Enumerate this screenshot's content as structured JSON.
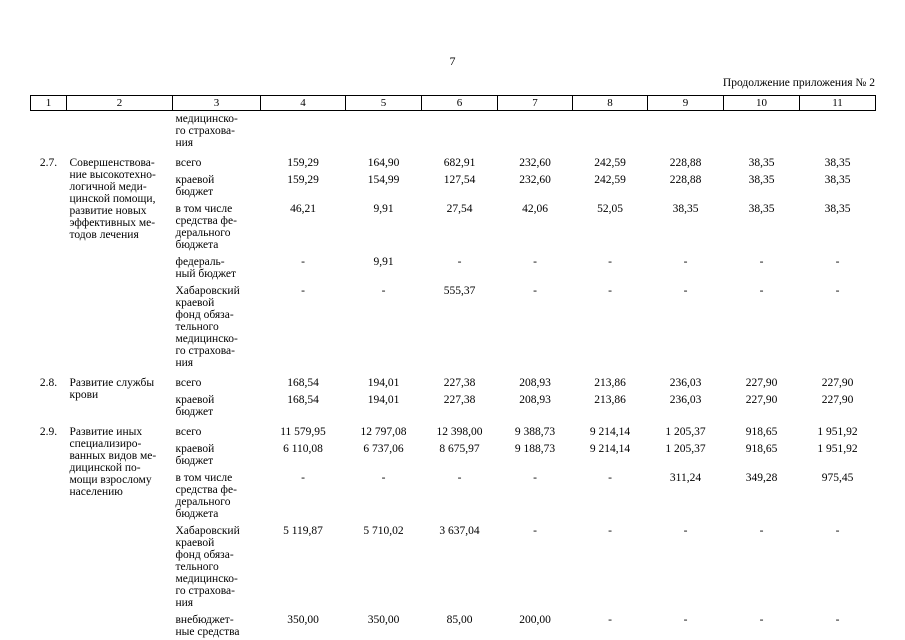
{
  "page": {
    "number": "7",
    "continuation_note": "Продолжение приложения № 2"
  },
  "table": {
    "column_numbers": [
      "1",
      "2",
      "3",
      "4",
      "5",
      "6",
      "7",
      "8",
      "9",
      "10",
      "11"
    ],
    "groups": [
      {
        "num": "",
        "name": "",
        "subrows": [
          {
            "label": "медицинско-\nго страхова-\nния",
            "values": [
              "",
              "",
              "",
              "",
              "",
              "",
              "",
              ""
            ]
          }
        ]
      },
      {
        "num": "2.7.",
        "name": "Совершенствова-\nние высокотехно-\nлогичной меди-\nцинской помощи,\nразвитие новых\nэффективных ме-\nтодов лечения",
        "subrows": [
          {
            "label": "всего",
            "values": [
              "159,29",
              "164,90",
              "682,91",
              "232,60",
              "242,59",
              "228,88",
              "38,35",
              "38,35"
            ]
          },
          {
            "label": "краевой\nбюджет",
            "values": [
              "159,29",
              "154,99",
              "127,54",
              "232,60",
              "242,59",
              "228,88",
              "38,35",
              "38,35"
            ]
          },
          {
            "label": "в том числе\nсредства фе-\nдерального\nбюджета",
            "values": [
              "46,21",
              "9,91",
              "27,54",
              "42,06",
              "52,05",
              "38,35",
              "38,35",
              "38,35"
            ]
          },
          {
            "label": "федераль-\nный бюджет",
            "values": [
              "-",
              "9,91",
              "-",
              "-",
              "-",
              "-",
              "-",
              "-"
            ]
          },
          {
            "label": "Хабаровский\nкраевой\nфонд обяза-\nтельного\nмедицинско-\nго страхова-\nния",
            "values": [
              "-",
              "-",
              "555,37",
              "-",
              "-",
              "-",
              "-",
              "-"
            ]
          }
        ]
      },
      {
        "num": "2.8.",
        "name": "Развитие службы\nкрови",
        "subrows": [
          {
            "label": "всего",
            "values": [
              "168,54",
              "194,01",
              "227,38",
              "208,93",
              "213,86",
              "236,03",
              "227,90",
              "227,90"
            ]
          },
          {
            "label": "краевой\nбюджет",
            "values": [
              "168,54",
              "194,01",
              "227,38",
              "208,93",
              "213,86",
              "236,03",
              "227,90",
              "227,90"
            ]
          }
        ]
      },
      {
        "num": "2.9.",
        "name": "Развитие иных\nспециализиро-\nванных видов ме-\nдицинской по-\nмощи взрослому\nнаселению",
        "subrows": [
          {
            "label": "всего",
            "values": [
              "11 579,95",
              "12 797,08",
              "12 398,00",
              "9 388,73",
              "9 214,14",
              "1 205,37",
              "918,65",
              "1 951,92"
            ]
          },
          {
            "label": "краевой\nбюджет",
            "values": [
              "6 110,08",
              "6 737,06",
              "8 675,97",
              "9 188,73",
              "9 214,14",
              "1 205,37",
              "918,65",
              "1 951,92"
            ]
          },
          {
            "label": "в том числе\nсредства фе-\nдерального\nбюджета",
            "values": [
              "-",
              "-",
              "-",
              "-",
              "-",
              "311,24",
              "349,28",
              "975,45"
            ]
          },
          {
            "label": "Хабаровский\nкраевой\nфонд обяза-\nтельного\nмедицинско-\nго страхова-\nния",
            "values": [
              "5 119,87",
              "5 710,02",
              "3 637,04",
              "-",
              "-",
              "-",
              "-",
              "-"
            ]
          },
          {
            "label": "внебюджет-\nные средства",
            "values": [
              "350,00",
              "350,00",
              "85,00",
              "200,00",
              "-",
              "-",
              "-",
              "-"
            ]
          }
        ]
      }
    ]
  }
}
